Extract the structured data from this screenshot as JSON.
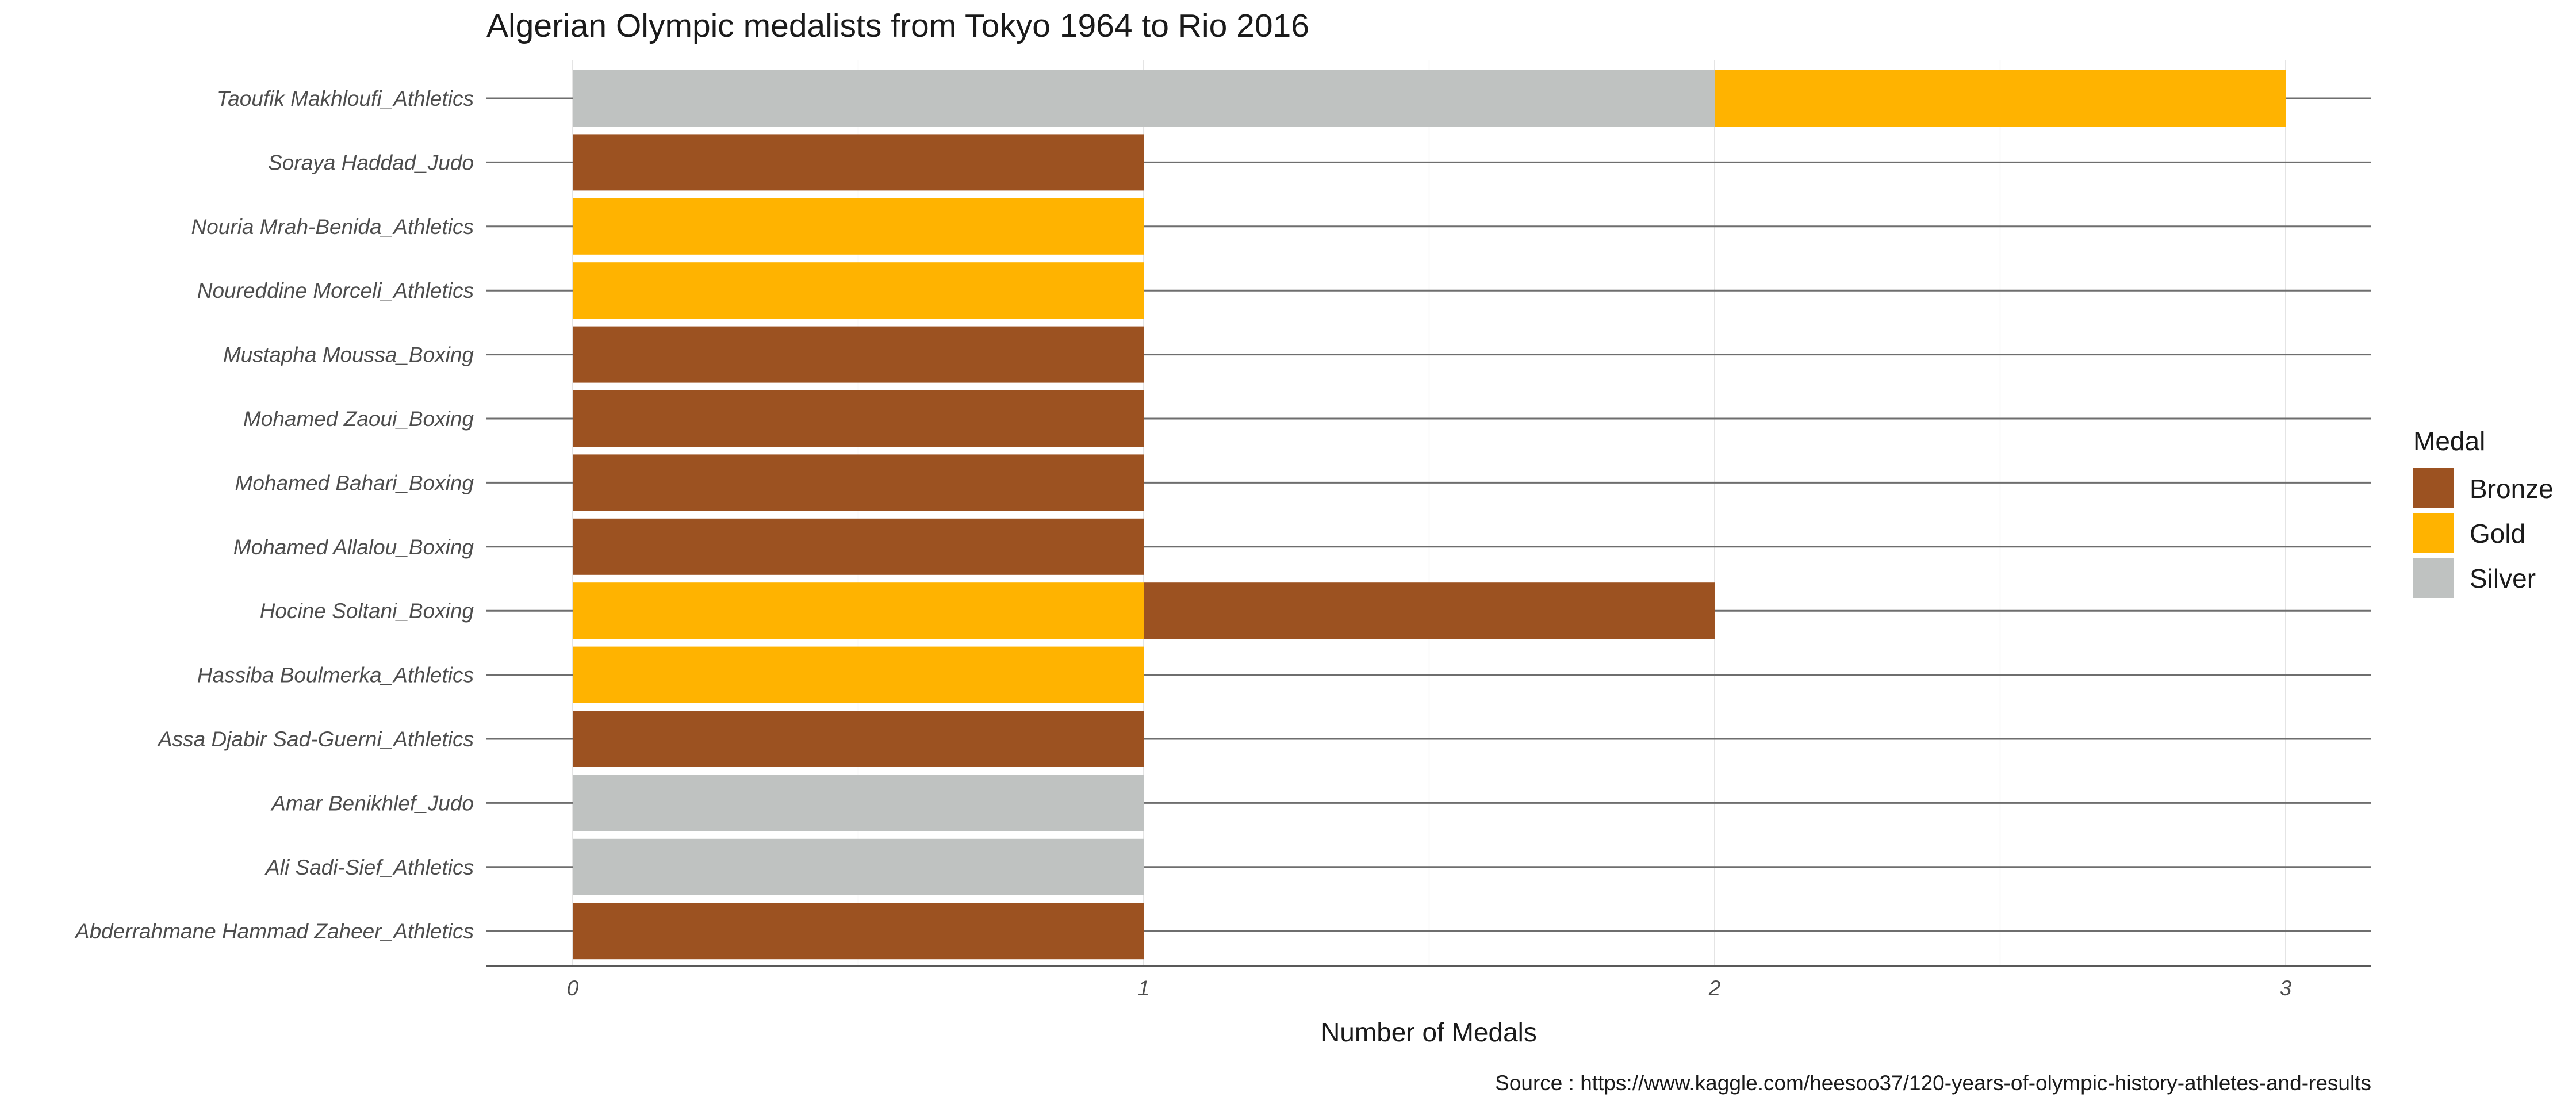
{
  "chart_data": {
    "type": "bar",
    "orientation": "horizontal",
    "stacked": true,
    "title": "Algerian Olympic medalists from Tokyo 1964 to Rio 2016",
    "xlabel": "Number of Medals",
    "ylabel": "",
    "xlim": [
      0,
      3
    ],
    "x_ticks": [
      0,
      1,
      2,
      3
    ],
    "grid": true,
    "legend": {
      "title": "Medal",
      "position": "right"
    },
    "caption": "Source : https://www.kaggle.com/heesoo37/120-years-of-olympic-history-athletes-and-results",
    "categories": [
      "Taoufik Makhloufi_Athletics",
      "Soraya Haddad_Judo",
      "Nouria Mrah-Benida_Athletics",
      "Noureddine Morceli_Athletics",
      "Mustapha Moussa_Boxing",
      "Mohamed Zaoui_Boxing",
      "Mohamed Bahari_Boxing",
      "Mohamed Allalou_Boxing",
      "Hocine Soltani_Boxing",
      "Hassiba Boulmerka_Athletics",
      "Assa Djabir Sad-Guerni_Athletics",
      "Amar Benikhlef_Judo",
      "Ali Sadi-Sief_Athletics",
      "Abderrahmane Hammad Zaheer_Athletics"
    ],
    "series": [
      {
        "name": "Bronze",
        "color": "#9C5221",
        "values": [
          0,
          1,
          0,
          0,
          1,
          1,
          1,
          1,
          1,
          0,
          1,
          0,
          0,
          1
        ]
      },
      {
        "name": "Gold",
        "color": "#FFB300",
        "values": [
          1,
          0,
          1,
          1,
          0,
          0,
          0,
          0,
          1,
          1,
          0,
          0,
          0,
          0
        ]
      },
      {
        "name": "Silver",
        "color": "#BFC2C1",
        "values": [
          2,
          0,
          0,
          0,
          0,
          0,
          0,
          0,
          0,
          0,
          0,
          1,
          1,
          0
        ]
      }
    ],
    "stack_order": [
      "Silver",
      "Gold",
      "Bronze"
    ]
  }
}
